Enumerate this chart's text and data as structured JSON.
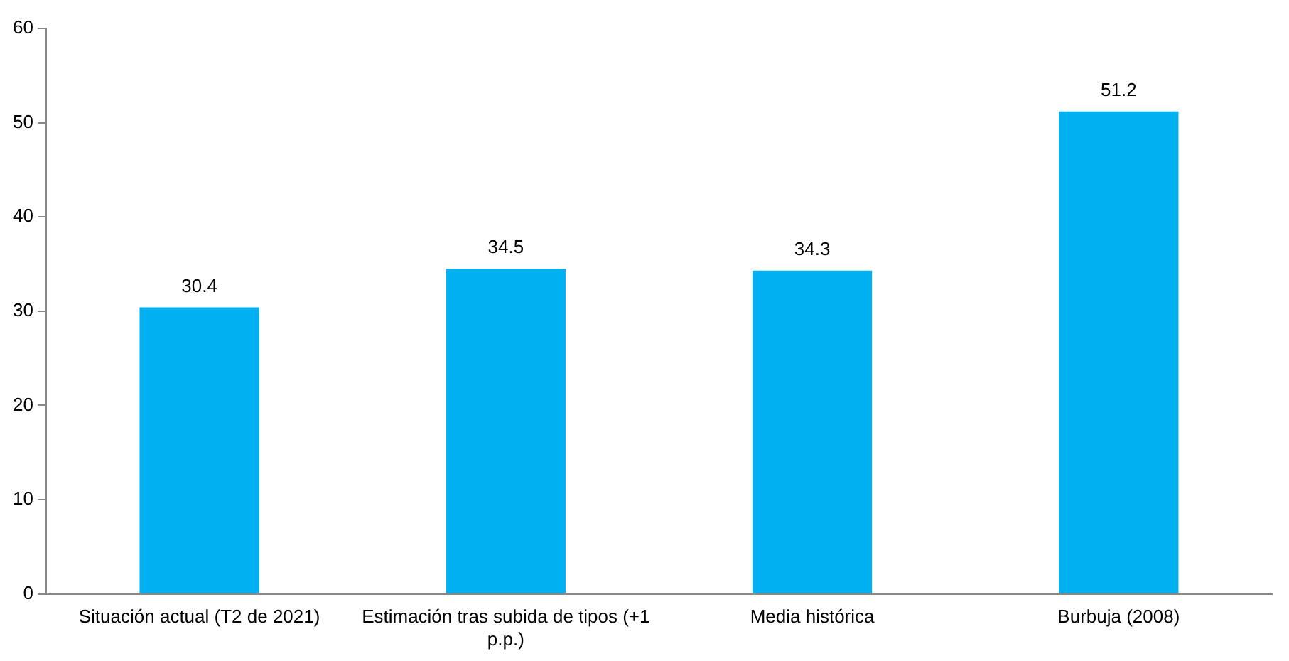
{
  "chart_data": {
    "type": "bar",
    "categories": [
      "Situación actual (T2 de 2021)",
      "Estimación tras subida de tipos (+1 p.p.)",
      "Media histórica",
      "Burbuja (2008)"
    ],
    "values": [
      30.4,
      34.5,
      34.3,
      51.2
    ],
    "color": "#00b0f0",
    "ylim": [
      0,
      60
    ],
    "yticks": [
      0,
      10,
      20,
      30,
      40,
      50,
      60
    ],
    "grid": false,
    "legend": false,
    "data_labels": true
  }
}
